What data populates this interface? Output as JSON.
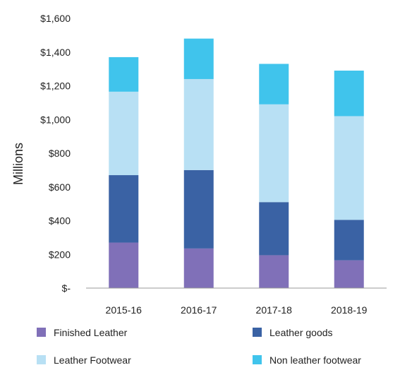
{
  "chart_data": {
    "type": "bar",
    "stacked": true,
    "categories": [
      "2015-16",
      "2016-17",
      "2017-18",
      "2018-19"
    ],
    "series": [
      {
        "name": "Finished Leather",
        "color": "#8070b8",
        "values": [
          270,
          235,
          195,
          165
        ]
      },
      {
        "name": "Leather goods",
        "color": "#3a62a4",
        "values": [
          400,
          465,
          315,
          240
        ]
      },
      {
        "name": "Leather Footwear",
        "color": "#b8e0f4",
        "values": [
          495,
          540,
          580,
          615
        ]
      },
      {
        "name": "Non leather footwear",
        "color": "#40c4ec",
        "values": [
          205,
          240,
          240,
          270
        ]
      }
    ],
    "ylabel": "Millions",
    "xlabel": "",
    "ylim": [
      0,
      1600
    ],
    "yticks": [
      0,
      200,
      400,
      600,
      800,
      1000,
      1200,
      1400,
      1600
    ],
    "ytick_labels": [
      "$-",
      "$200",
      "$400",
      "$600",
      "$800",
      "$1,000",
      "$1,200",
      "$1,400",
      "$1,600"
    ],
    "grid": false,
    "legend_position": "bottom"
  }
}
